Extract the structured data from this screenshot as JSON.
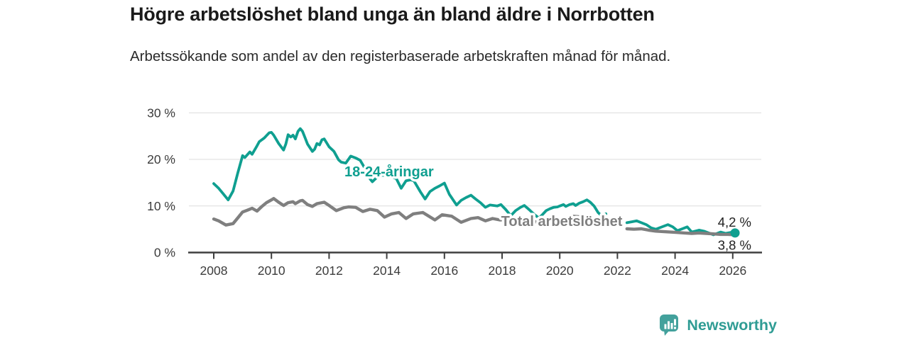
{
  "chart_data": {
    "type": "line",
    "title": "Högre arbetslöshet bland unga än bland äldre i Norrbotten",
    "subtitle": "Arbetssökande som andel av den registerbaserade arbetskraften månad för månad.",
    "x_ticks": [
      2008,
      2010,
      2012,
      2014,
      2016,
      2018,
      2020,
      2022,
      2024,
      2026
    ],
    "y_ticks": [
      0,
      10,
      20,
      30
    ],
    "y_tick_suffix": " %",
    "xlim": [
      2007.1,
      2027
    ],
    "ylim": [
      0,
      30
    ],
    "grid": true,
    "grid_color": "#dcdcdc",
    "axis_color": "#3e3e3e",
    "series": [
      {
        "name": "18-24-åringar",
        "color": "#0f9f90",
        "line_width": 3.8,
        "end_dot": true,
        "inline_label": {
          "text": "18-24-åringar",
          "year": 2014.08,
          "pct": 17.4
        },
        "end_label": {
          "text": "4,2 %",
          "position": "above"
        },
        "segments": [
          [
            [
              2008.0,
              14.8
            ],
            [
              2008.17,
              13.8
            ],
            [
              2008.33,
              12.6
            ],
            [
              2008.5,
              11.3
            ],
            [
              2008.67,
              13.2
            ],
            [
              2008.83,
              17.0
            ],
            [
              2009.0,
              20.8
            ],
            [
              2009.08,
              20.4
            ],
            [
              2009.25,
              21.6
            ],
            [
              2009.33,
              21.1
            ],
            [
              2009.5,
              22.9
            ],
            [
              2009.58,
              23.8
            ],
            [
              2009.75,
              24.6
            ],
            [
              2009.92,
              25.7
            ],
            [
              2010.0,
              25.8
            ],
            [
              2010.08,
              25.2
            ],
            [
              2010.25,
              23.4
            ],
            [
              2010.42,
              22.0
            ],
            [
              2010.5,
              23.3
            ],
            [
              2010.58,
              25.3
            ],
            [
              2010.67,
              24.8
            ],
            [
              2010.75,
              25.2
            ],
            [
              2010.83,
              24.4
            ],
            [
              2010.92,
              26.0
            ],
            [
              2011.0,
              26.6
            ],
            [
              2011.08,
              26.0
            ],
            [
              2011.17,
              24.6
            ],
            [
              2011.25,
              23.3
            ],
            [
              2011.42,
              21.7
            ],
            [
              2011.5,
              22.2
            ],
            [
              2011.58,
              23.4
            ],
            [
              2011.67,
              23.1
            ],
            [
              2011.75,
              24.2
            ],
            [
              2011.83,
              24.4
            ],
            [
              2011.92,
              23.5
            ],
            [
              2012.0,
              22.7
            ],
            [
              2012.17,
              21.7
            ],
            [
              2012.33,
              19.9
            ],
            [
              2012.42,
              19.4
            ],
            [
              2012.58,
              19.2
            ],
            [
              2012.75,
              20.7
            ],
            [
              2012.92,
              20.3
            ],
            [
              2013.08,
              19.8
            ],
            [
              2013.25,
              18.0
            ],
            [
              2013.42,
              15.8
            ],
            [
              2013.5,
              15.2
            ],
            [
              2013.67,
              16.2
            ],
            [
              2013.83,
              16.6
            ],
            [
              2014.0,
              16.5
            ],
            [
              2014.17,
              16.2
            ],
            [
              2014.33,
              15.9
            ],
            [
              2014.5,
              13.8
            ],
            [
              2014.67,
              15.4
            ],
            [
              2014.83,
              15.6
            ],
            [
              2014.94,
              15.4
            ],
            [
              2015.17,
              13.0
            ],
            [
              2015.33,
              11.5
            ],
            [
              2015.5,
              13.1
            ],
            [
              2015.67,
              13.8
            ],
            [
              2015.83,
              14.3
            ],
            [
              2016.0,
              14.9
            ],
            [
              2016.17,
              12.5
            ],
            [
              2016.42,
              10.2
            ],
            [
              2016.58,
              11.2
            ],
            [
              2016.75,
              11.8
            ],
            [
              2016.92,
              12.3
            ],
            [
              2017.08,
              11.5
            ],
            [
              2017.25,
              10.7
            ],
            [
              2017.42,
              9.7
            ],
            [
              2017.58,
              10.2
            ],
            [
              2017.83,
              10.0
            ],
            [
              2017.96,
              10.3
            ],
            [
              2018.13,
              9.2
            ],
            [
              2018.3,
              7.9
            ],
            [
              2018.47,
              9.0
            ],
            [
              2018.64,
              9.7
            ],
            [
              2018.77,
              10.1
            ],
            [
              2018.94,
              9.2
            ],
            [
              2019.11,
              8.2
            ],
            [
              2019.28,
              7.4
            ],
            [
              2019.41,
              8.2
            ],
            [
              2019.53,
              9.0
            ],
            [
              2019.66,
              9.4
            ],
            [
              2019.79,
              9.7
            ],
            [
              2019.92,
              9.8
            ],
            [
              2020.0,
              10.0
            ],
            [
              2020.13,
              10.3
            ],
            [
              2020.21,
              9.9
            ],
            [
              2020.34,
              10.3
            ],
            [
              2020.47,
              10.5
            ],
            [
              2020.55,
              10.1
            ],
            [
              2020.68,
              10.6
            ],
            [
              2020.81,
              10.9
            ],
            [
              2020.94,
              11.3
            ],
            [
              2021.06,
              10.8
            ],
            [
              2021.19,
              10.0
            ],
            [
              2021.33,
              8.6
            ],
            [
              2021.45,
              7.9
            ],
            [
              2021.6,
              8.3
            ]
          ],
          [
            [
              2022.33,
              6.4
            ],
            [
              2022.5,
              6.6
            ],
            [
              2022.67,
              6.8
            ],
            [
              2022.83,
              6.4
            ],
            [
              2023.0,
              6.0
            ],
            [
              2023.17,
              5.3
            ],
            [
              2023.33,
              5.0
            ],
            [
              2023.5,
              5.4
            ],
            [
              2023.75,
              6.0
            ],
            [
              2023.92,
              5.5
            ],
            [
              2024.08,
              4.7
            ],
            [
              2024.25,
              5.1
            ],
            [
              2024.42,
              5.5
            ],
            [
              2024.58,
              4.4
            ],
            [
              2024.83,
              4.8
            ],
            [
              2025.0,
              4.6
            ],
            [
              2025.17,
              4.2
            ],
            [
              2025.33,
              3.8
            ],
            [
              2025.58,
              4.4
            ],
            [
              2025.75,
              4.1
            ],
            [
              2025.92,
              4.3
            ],
            [
              2026.08,
              4.2
            ]
          ]
        ]
      },
      {
        "name": "Total arbetslöshet",
        "color": "#7f7f7f",
        "line_width": 4.4,
        "end_dot": false,
        "inline_label": {
          "text": "Total arbetslöshet",
          "year": 2020.07,
          "pct": 6.77
        },
        "end_label": {
          "text": "3,8 %",
          "position": "below"
        },
        "segments": [
          [
            [
              2008.0,
              7.2
            ],
            [
              2008.17,
              6.8
            ],
            [
              2008.42,
              5.9
            ],
            [
              2008.67,
              6.2
            ],
            [
              2008.83,
              7.4
            ],
            [
              2009.0,
              8.7
            ],
            [
              2009.17,
              9.1
            ],
            [
              2009.33,
              9.5
            ],
            [
              2009.5,
              8.9
            ],
            [
              2009.67,
              9.9
            ],
            [
              2009.83,
              10.7
            ],
            [
              2010.0,
              11.3
            ],
            [
              2010.08,
              11.6
            ],
            [
              2010.25,
              10.8
            ],
            [
              2010.42,
              10.1
            ],
            [
              2010.58,
              10.7
            ],
            [
              2010.75,
              10.9
            ],
            [
              2010.83,
              10.5
            ],
            [
              2011.0,
              11.1
            ],
            [
              2011.08,
              11.2
            ],
            [
              2011.25,
              10.3
            ],
            [
              2011.42,
              9.9
            ],
            [
              2011.58,
              10.5
            ],
            [
              2011.83,
              10.8
            ],
            [
              2012.0,
              10.1
            ],
            [
              2012.25,
              9.0
            ],
            [
              2012.5,
              9.6
            ],
            [
              2012.67,
              9.8
            ],
            [
              2012.92,
              9.7
            ],
            [
              2013.17,
              8.8
            ],
            [
              2013.42,
              9.3
            ],
            [
              2013.67,
              9.0
            ],
            [
              2013.92,
              7.6
            ],
            [
              2014.17,
              8.3
            ],
            [
              2014.42,
              8.6
            ],
            [
              2014.67,
              7.3
            ],
            [
              2014.92,
              8.3
            ],
            [
              2015.25,
              8.6
            ],
            [
              2015.67,
              7.0
            ],
            [
              2015.92,
              8.1
            ],
            [
              2016.25,
              7.8
            ],
            [
              2016.58,
              6.5
            ],
            [
              2016.92,
              7.3
            ],
            [
              2017.17,
              7.5
            ],
            [
              2017.42,
              6.8
            ],
            [
              2017.67,
              7.3
            ],
            [
              2017.92,
              7.0
            ],
            [
              2018.17,
              7.1
            ],
            [
              2018.42,
              6.5
            ],
            [
              2018.67,
              6.3
            ],
            [
              2018.92,
              6.8
            ],
            [
              2019.17,
              6.6
            ],
            [
              2019.42,
              6.1
            ],
            [
              2019.67,
              6.3
            ],
            [
              2019.92,
              6.8
            ],
            [
              2020.17,
              7.2
            ],
            [
              2020.42,
              7.8
            ],
            [
              2020.67,
              7.7
            ],
            [
              2020.92,
              7.5
            ],
            [
              2021.17,
              7.2
            ],
            [
              2021.42,
              6.9
            ],
            [
              2021.67,
              6.8
            ]
          ],
          [
            [
              2022.33,
              5.1
            ],
            [
              2022.58,
              5.0
            ],
            [
              2022.83,
              5.1
            ],
            [
              2023.08,
              4.8
            ],
            [
              2023.33,
              4.6
            ],
            [
              2023.58,
              4.5
            ],
            [
              2023.83,
              4.4
            ],
            [
              2024.08,
              4.3
            ],
            [
              2024.33,
              4.2
            ],
            [
              2024.58,
              4.1
            ],
            [
              2024.83,
              4.2
            ],
            [
              2025.08,
              4.1
            ],
            [
              2025.33,
              4.0
            ],
            [
              2025.58,
              3.9
            ],
            [
              2025.83,
              3.9
            ],
            [
              2026.13,
              3.8
            ]
          ]
        ]
      }
    ]
  },
  "footer": {
    "brand": "Newsworthy",
    "brand_color": "#2f9c94",
    "icon": "newsworthy-bubble-chart-icon",
    "icon_color": "#43a19c"
  }
}
